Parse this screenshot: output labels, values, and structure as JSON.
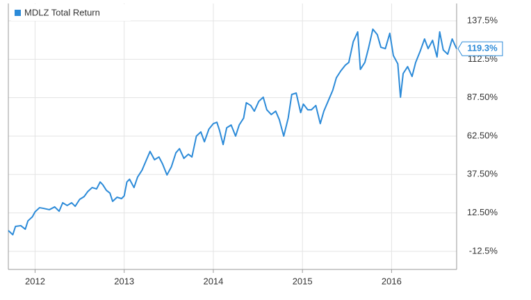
{
  "chart_data": {
    "type": "line",
    "x": [
      2011.7,
      2011.75,
      2011.78,
      2011.84,
      2011.89,
      2011.92,
      2011.97,
      2012.0,
      2012.05,
      2012.09,
      2012.16,
      2012.22,
      2012.27,
      2012.31,
      2012.36,
      2012.41,
      2012.45,
      2012.5,
      2012.55,
      2012.59,
      2012.64,
      2012.69,
      2012.73,
      2012.76,
      2012.8,
      2012.84,
      2012.87,
      2012.92,
      2012.97,
      2013.0,
      2013.03,
      2013.06,
      2013.11,
      2013.15,
      2013.2,
      2013.25,
      2013.29,
      2013.34,
      2013.39,
      2013.43,
      2013.48,
      2013.53,
      2013.58,
      2013.62,
      2013.67,
      2013.72,
      2013.76,
      2013.81,
      2013.86,
      2013.9,
      2013.95,
      2014.0,
      2014.04,
      2014.07,
      2014.11,
      2014.15,
      2014.2,
      2014.25,
      2014.29,
      2014.34,
      2014.37,
      2014.42,
      2014.46,
      2014.51,
      2014.56,
      2014.6,
      2014.65,
      2014.7,
      2014.74,
      2014.79,
      2014.84,
      2014.88,
      2014.93,
      2014.98,
      2015.01,
      2015.06,
      2015.1,
      2015.15,
      2015.2,
      2015.24,
      2015.29,
      2015.34,
      2015.38,
      2015.43,
      2015.48,
      2015.52,
      2015.57,
      2015.62,
      2015.65,
      2015.7,
      2015.74,
      2015.79,
      2015.84,
      2015.88,
      2015.93,
      2015.98,
      2016.02,
      2016.07,
      2016.1,
      2016.13,
      2016.18,
      2016.23,
      2016.27,
      2016.32,
      2016.37,
      2016.41,
      2016.46,
      2016.51,
      2016.54,
      2016.58,
      2016.63,
      2016.68,
      2016.73
    ],
    "series": [
      {
        "name": "MDLZ Total Return",
        "color": "#2b8ad8",
        "values": [
          1.0,
          -1.7,
          3.7,
          4.2,
          1.9,
          7.3,
          10.0,
          13.2,
          15.9,
          15.5,
          14.6,
          16.4,
          13.6,
          19.1,
          17.3,
          19.1,
          16.8,
          21.3,
          23.1,
          26.3,
          29.0,
          28.1,
          32.6,
          30.8,
          27.2,
          25.4,
          20.0,
          22.7,
          21.8,
          23.6,
          32.6,
          34.4,
          29.0,
          35.8,
          40.3,
          47.1,
          52.5,
          47.1,
          48.9,
          44.4,
          37.2,
          42.6,
          51.6,
          54.3,
          48.0,
          50.7,
          48.9,
          62.5,
          65.2,
          58.8,
          67.0,
          70.6,
          71.5,
          66.1,
          57.0,
          67.9,
          69.7,
          62.5,
          69.7,
          74.2,
          84.2,
          82.4,
          78.7,
          85.1,
          87.8,
          79.6,
          76.5,
          78.7,
          73.3,
          62.5,
          74.2,
          89.6,
          90.5,
          77.8,
          83.3,
          79.6,
          79.6,
          82.4,
          70.6,
          78.7,
          85.5,
          92.3,
          100.4,
          104.9,
          108.6,
          110.4,
          123.9,
          130.3,
          105.9,
          110.4,
          119.4,
          132.1,
          128.5,
          120.3,
          119.4,
          129.4,
          114.9,
          109.5,
          87.8,
          103.2,
          107.7,
          101.3,
          110.4,
          117.6,
          125.7,
          119.4,
          124.8,
          114.0,
          130.3,
          118.5,
          115.8,
          125.7,
          119.3
        ],
        "last_label": "119.3%"
      }
    ],
    "xlim": [
      2011.7,
      2016.73
    ],
    "xticks": [
      2012,
      2013,
      2014,
      2015,
      2016
    ],
    "ylim": [
      -24.3,
      148.8
    ],
    "yticks": [
      {
        "value": -12.5,
        "label": "-12.5%"
      },
      {
        "value": 12.5,
        "label": "12.50%"
      },
      {
        "value": 37.5,
        "label": "37.50%"
      },
      {
        "value": 62.5,
        "label": "62.50%"
      },
      {
        "value": 87.5,
        "label": "87.50%"
      },
      {
        "value": 112.5,
        "label": "112.5%"
      },
      {
        "value": 137.5,
        "label": "137.5%"
      }
    ],
    "grid": true,
    "legend": "top-left"
  }
}
